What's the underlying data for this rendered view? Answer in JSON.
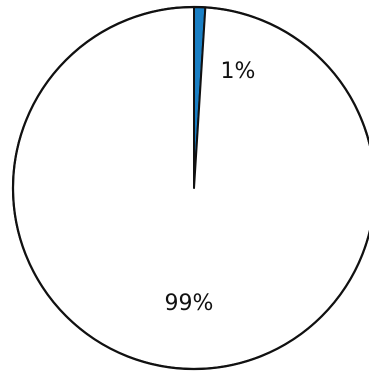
{
  "chart_data": {
    "type": "pie",
    "slices": [
      {
        "label": "1%",
        "value": 1,
        "color": "#1a7fc4"
      },
      {
        "label": "99%",
        "value": 99,
        "color": "#ffffff"
      }
    ],
    "start_angle_deg": 90,
    "direction": "clockwise",
    "outline_color": "#111111"
  }
}
